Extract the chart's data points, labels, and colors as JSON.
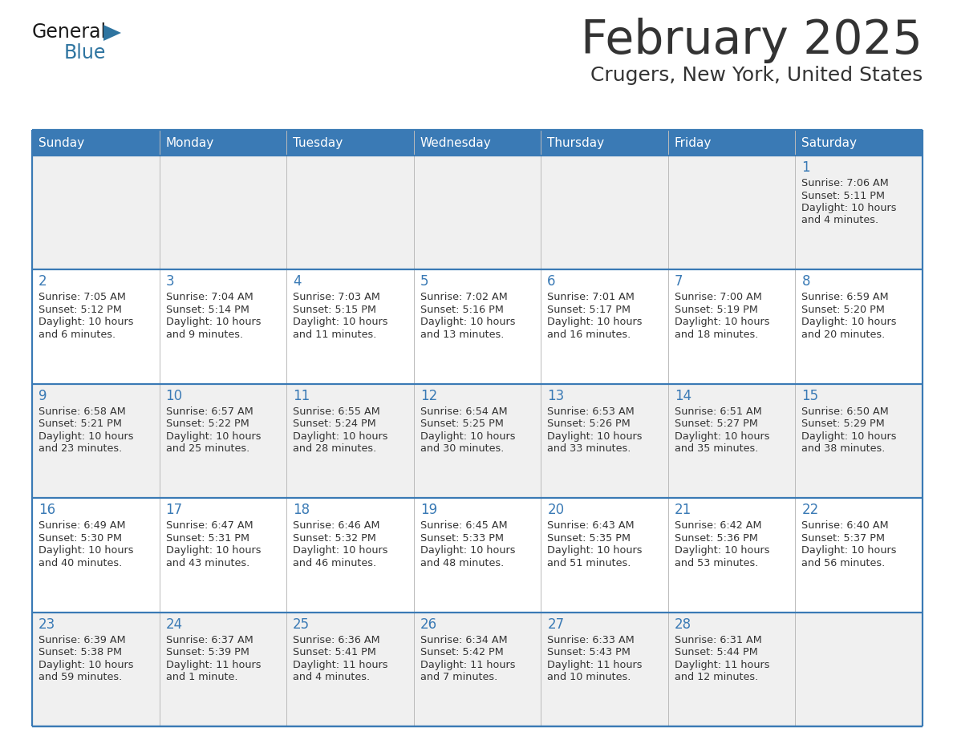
{
  "title": "February 2025",
  "subtitle": "Crugers, New York, United States",
  "header_bg": "#3a7ab5",
  "header_text_color": "#FFFFFF",
  "day_names": [
    "Sunday",
    "Monday",
    "Tuesday",
    "Wednesday",
    "Thursday",
    "Friday",
    "Saturday"
  ],
  "row_bg_colors": [
    "#F0F0F0",
    "#FFFFFF",
    "#F0F0F0",
    "#FFFFFF",
    "#F0F0F0"
  ],
  "cell_border_color": "#3a7ab5",
  "day_num_color": "#3a7ab5",
  "info_text_color": "#333333",
  "title_color": "#333333",
  "subtitle_color": "#333333",
  "calendar": [
    [
      null,
      null,
      null,
      null,
      null,
      null,
      {
        "day": "1",
        "sunrise": "7:06 AM",
        "sunset": "5:11 PM",
        "dl1": "Daylight: 10 hours",
        "dl2": "and 4 minutes."
      }
    ],
    [
      {
        "day": "2",
        "sunrise": "7:05 AM",
        "sunset": "5:12 PM",
        "dl1": "Daylight: 10 hours",
        "dl2": "and 6 minutes."
      },
      {
        "day": "3",
        "sunrise": "7:04 AM",
        "sunset": "5:14 PM",
        "dl1": "Daylight: 10 hours",
        "dl2": "and 9 minutes."
      },
      {
        "day": "4",
        "sunrise": "7:03 AM",
        "sunset": "5:15 PM",
        "dl1": "Daylight: 10 hours",
        "dl2": "and 11 minutes."
      },
      {
        "day": "5",
        "sunrise": "7:02 AM",
        "sunset": "5:16 PM",
        "dl1": "Daylight: 10 hours",
        "dl2": "and 13 minutes."
      },
      {
        "day": "6",
        "sunrise": "7:01 AM",
        "sunset": "5:17 PM",
        "dl1": "Daylight: 10 hours",
        "dl2": "and 16 minutes."
      },
      {
        "day": "7",
        "sunrise": "7:00 AM",
        "sunset": "5:19 PM",
        "dl1": "Daylight: 10 hours",
        "dl2": "and 18 minutes."
      },
      {
        "day": "8",
        "sunrise": "6:59 AM",
        "sunset": "5:20 PM",
        "dl1": "Daylight: 10 hours",
        "dl2": "and 20 minutes."
      }
    ],
    [
      {
        "day": "9",
        "sunrise": "6:58 AM",
        "sunset": "5:21 PM",
        "dl1": "Daylight: 10 hours",
        "dl2": "and 23 minutes."
      },
      {
        "day": "10",
        "sunrise": "6:57 AM",
        "sunset": "5:22 PM",
        "dl1": "Daylight: 10 hours",
        "dl2": "and 25 minutes."
      },
      {
        "day": "11",
        "sunrise": "6:55 AM",
        "sunset": "5:24 PM",
        "dl1": "Daylight: 10 hours",
        "dl2": "and 28 minutes."
      },
      {
        "day": "12",
        "sunrise": "6:54 AM",
        "sunset": "5:25 PM",
        "dl1": "Daylight: 10 hours",
        "dl2": "and 30 minutes."
      },
      {
        "day": "13",
        "sunrise": "6:53 AM",
        "sunset": "5:26 PM",
        "dl1": "Daylight: 10 hours",
        "dl2": "and 33 minutes."
      },
      {
        "day": "14",
        "sunrise": "6:51 AM",
        "sunset": "5:27 PM",
        "dl1": "Daylight: 10 hours",
        "dl2": "and 35 minutes."
      },
      {
        "day": "15",
        "sunrise": "6:50 AM",
        "sunset": "5:29 PM",
        "dl1": "Daylight: 10 hours",
        "dl2": "and 38 minutes."
      }
    ],
    [
      {
        "day": "16",
        "sunrise": "6:49 AM",
        "sunset": "5:30 PM",
        "dl1": "Daylight: 10 hours",
        "dl2": "and 40 minutes."
      },
      {
        "day": "17",
        "sunrise": "6:47 AM",
        "sunset": "5:31 PM",
        "dl1": "Daylight: 10 hours",
        "dl2": "and 43 minutes."
      },
      {
        "day": "18",
        "sunrise": "6:46 AM",
        "sunset": "5:32 PM",
        "dl1": "Daylight: 10 hours",
        "dl2": "and 46 minutes."
      },
      {
        "day": "19",
        "sunrise": "6:45 AM",
        "sunset": "5:33 PM",
        "dl1": "Daylight: 10 hours",
        "dl2": "and 48 minutes."
      },
      {
        "day": "20",
        "sunrise": "6:43 AM",
        "sunset": "5:35 PM",
        "dl1": "Daylight: 10 hours",
        "dl2": "and 51 minutes."
      },
      {
        "day": "21",
        "sunrise": "6:42 AM",
        "sunset": "5:36 PM",
        "dl1": "Daylight: 10 hours",
        "dl2": "and 53 minutes."
      },
      {
        "day": "22",
        "sunrise": "6:40 AM",
        "sunset": "5:37 PM",
        "dl1": "Daylight: 10 hours",
        "dl2": "and 56 minutes."
      }
    ],
    [
      {
        "day": "23",
        "sunrise": "6:39 AM",
        "sunset": "5:38 PM",
        "dl1": "Daylight: 10 hours",
        "dl2": "and 59 minutes."
      },
      {
        "day": "24",
        "sunrise": "6:37 AM",
        "sunset": "5:39 PM",
        "dl1": "Daylight: 11 hours",
        "dl2": "and 1 minute."
      },
      {
        "day": "25",
        "sunrise": "6:36 AM",
        "sunset": "5:41 PM",
        "dl1": "Daylight: 11 hours",
        "dl2": "and 4 minutes."
      },
      {
        "day": "26",
        "sunrise": "6:34 AM",
        "sunset": "5:42 PM",
        "dl1": "Daylight: 11 hours",
        "dl2": "and 7 minutes."
      },
      {
        "day": "27",
        "sunrise": "6:33 AM",
        "sunset": "5:43 PM",
        "dl1": "Daylight: 11 hours",
        "dl2": "and 10 minutes."
      },
      {
        "day": "28",
        "sunrise": "6:31 AM",
        "sunset": "5:44 PM",
        "dl1": "Daylight: 11 hours",
        "dl2": "and 12 minutes."
      },
      null
    ]
  ]
}
